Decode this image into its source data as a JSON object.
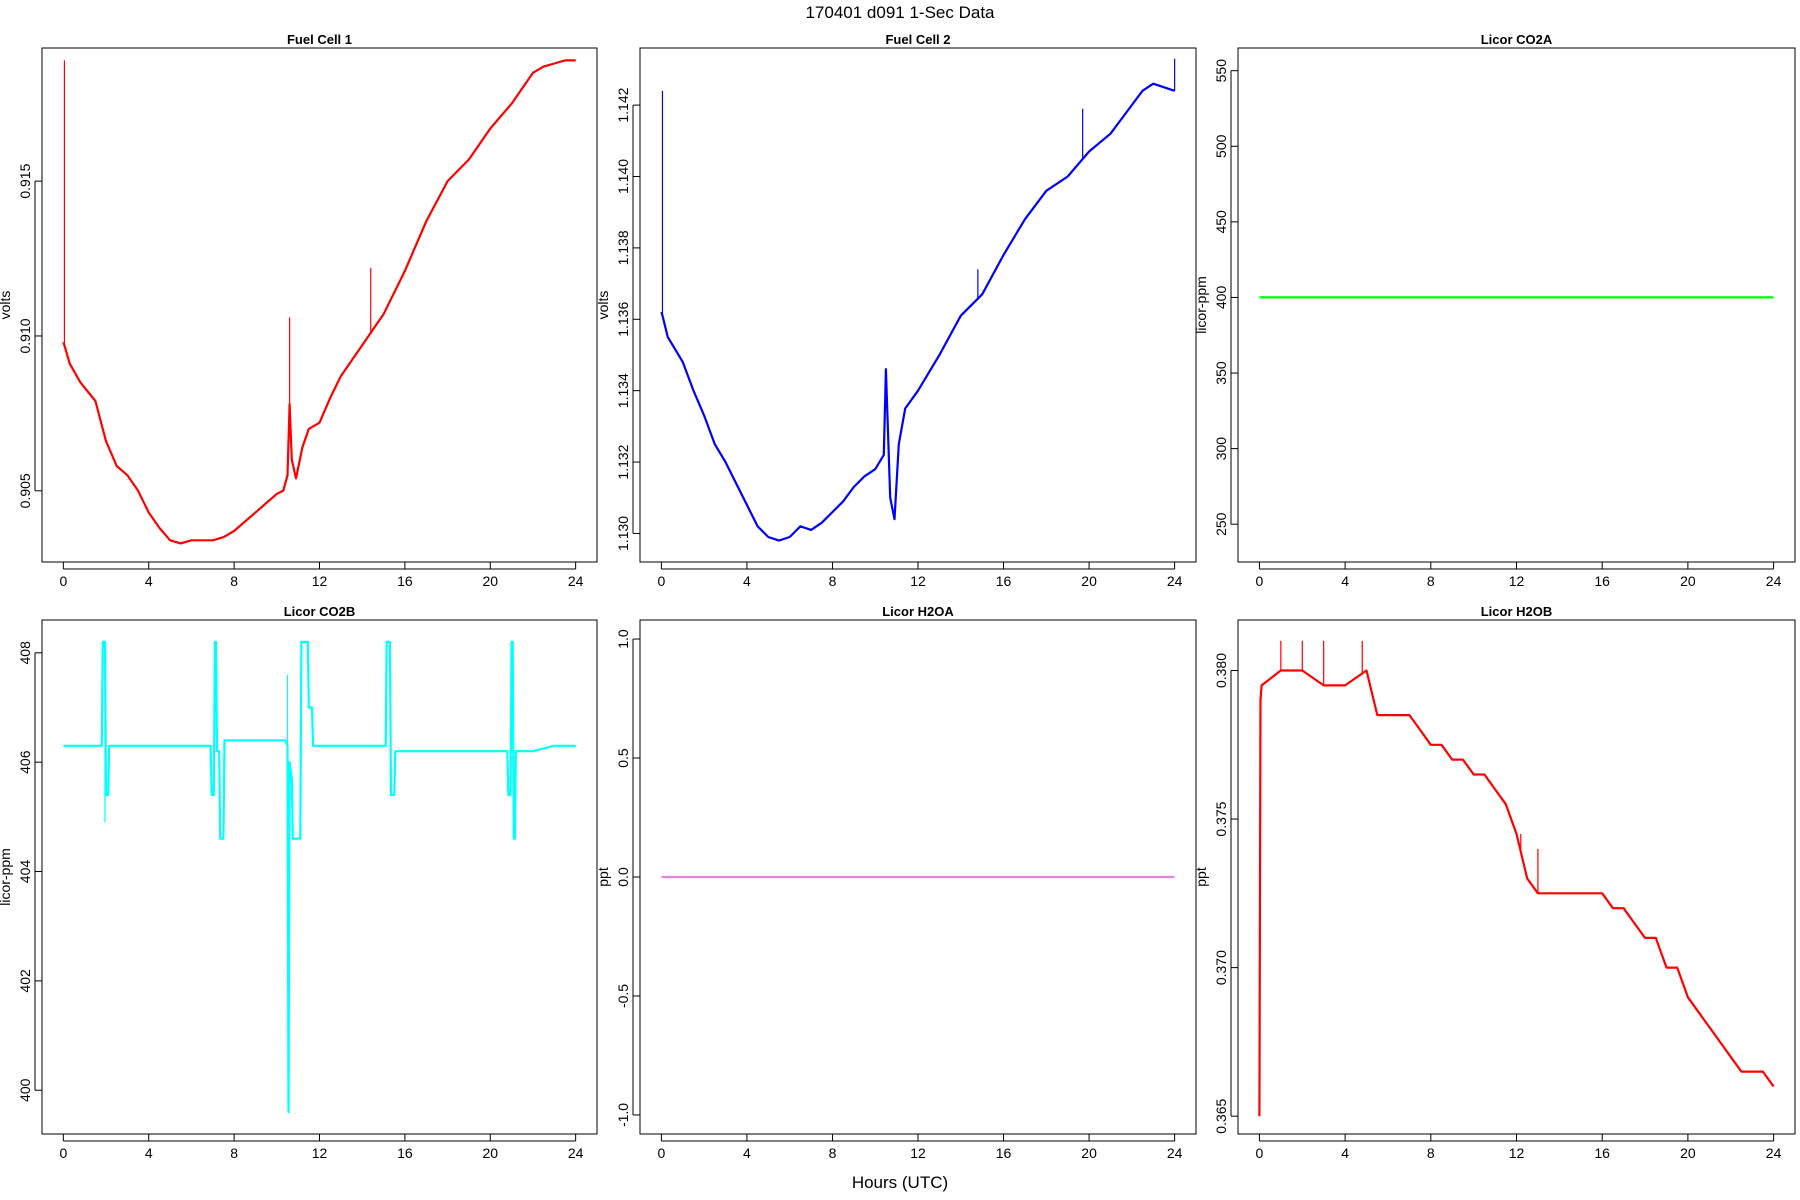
{
  "figure": {
    "title": "170401    d091    1-Sec Data",
    "xlabel": "Hours (UTC)"
  },
  "chart_data": [
    {
      "type": "line",
      "title": "Fuel Cell 1",
      "ylabel": "volts",
      "xlabel": "",
      "color": "#ff0000",
      "xlim": [
        -1,
        25
      ],
      "ylim": [
        0.9027,
        0.9193
      ],
      "xticks": [
        "0",
        "4",
        "8",
        "12",
        "16",
        "20",
        "24"
      ],
      "yticks": [
        "0.905",
        "0.910",
        "0.915"
      ],
      "series": [
        {
          "x": [
            0,
            0.05,
            0.3,
            0.8,
            1.5,
            2,
            2.5,
            3,
            3.5,
            4,
            4.5,
            5,
            5.5,
            6,
            6.5,
            7,
            7.5,
            8,
            8.5,
            9,
            9.5,
            10,
            10.3,
            10.5,
            10.6,
            10.7,
            10.9,
            11.2,
            11.5,
            12,
            12.5,
            13,
            14,
            15,
            16,
            17,
            18,
            19,
            20,
            21,
            21.5,
            22,
            22.5,
            23,
            23.5,
            24
          ],
          "y": [
            0.9098,
            0.9097,
            0.9091,
            0.9085,
            0.9079,
            0.9066,
            0.9058,
            0.9055,
            0.905,
            0.9043,
            0.9038,
            0.9034,
            0.9033,
            0.9034,
            0.9034,
            0.9034,
            0.9035,
            0.9037,
            0.904,
            0.9043,
            0.9046,
            0.9049,
            0.905,
            0.9055,
            0.9078,
            0.906,
            0.9054,
            0.9064,
            0.907,
            0.9072,
            0.908,
            0.9087,
            0.9097,
            0.9107,
            0.9121,
            0.9137,
            0.915,
            0.9157,
            0.9167,
            0.9175,
            0.918,
            0.9185,
            0.9187,
            0.9188,
            0.9189,
            0.9189
          ]
        }
      ],
      "spikes": [
        {
          "x": 0.05,
          "y": 0.9189
        },
        {
          "x": 14.4,
          "y": 0.9122
        },
        {
          "x": 10.6,
          "y": 0.9106
        }
      ]
    },
    {
      "type": "line",
      "title": "Fuel Cell 2",
      "ylabel": "volts",
      "xlabel": "",
      "color": "#0000ff",
      "xlim": [
        -1,
        25
      ],
      "ylim": [
        1.1292,
        1.1436
      ],
      "xticks": [
        "0",
        "4",
        "8",
        "12",
        "16",
        "20",
        "24"
      ],
      "yticks": [
        "1.130",
        "1.132",
        "1.134",
        "1.136",
        "1.138",
        "1.140",
        "1.142"
      ],
      "series": [
        {
          "x": [
            0,
            0.05,
            0.3,
            1,
            1.5,
            2,
            2.5,
            3,
            3.5,
            4,
            4.5,
            5,
            5.5,
            6,
            6.5,
            7,
            7.5,
            8,
            8.5,
            9,
            9.5,
            10,
            10.4,
            10.5,
            10.7,
            10.9,
            11.1,
            11.4,
            12,
            12.5,
            13,
            14,
            15,
            16,
            17,
            18,
            19,
            20,
            21,
            22,
            22.5,
            23,
            24
          ],
          "y": [
            1.1362,
            1.1361,
            1.1355,
            1.1348,
            1.134,
            1.1333,
            1.1325,
            1.132,
            1.1314,
            1.1308,
            1.1302,
            1.1299,
            1.1298,
            1.1299,
            1.1302,
            1.1301,
            1.1303,
            1.1306,
            1.1309,
            1.1313,
            1.1316,
            1.1318,
            1.1322,
            1.1346,
            1.131,
            1.1304,
            1.1325,
            1.1335,
            1.134,
            1.1345,
            1.135,
            1.1361,
            1.1367,
            1.1378,
            1.1388,
            1.1396,
            1.14,
            1.1407,
            1.1412,
            1.142,
            1.1424,
            1.1426,
            1.1424
          ]
        }
      ],
      "spikes": [
        {
          "x": 0.05,
          "y": 1.1424
        },
        {
          "x": 19.7,
          "y": 1.1419
        },
        {
          "x": 24,
          "y": 1.1433
        },
        {
          "x": 14.8,
          "y": 1.1374
        }
      ]
    },
    {
      "type": "line",
      "title": "Licor CO2A",
      "ylabel": "licor-ppm",
      "xlabel": "",
      "color": "#00ff00",
      "xlim": [
        -1,
        25
      ],
      "ylim": [
        225,
        565
      ],
      "xticks": [
        "0",
        "4",
        "8",
        "12",
        "16",
        "20",
        "24"
      ],
      "yticks": [
        "250",
        "300",
        "350",
        "400",
        "450",
        "500",
        "550"
      ],
      "series": [
        {
          "x": [
            0,
            24
          ],
          "y": [
            400,
            400
          ]
        }
      ],
      "spikes": []
    },
    {
      "type": "line",
      "title": "Licor CO2B",
      "ylabel": "licor-ppm",
      "xlabel": "",
      "color": "#00ffff",
      "xlim": [
        -1,
        25
      ],
      "ylim": [
        399.2,
        408.6
      ],
      "xticks": [
        "0",
        "4",
        "8",
        "12",
        "16",
        "20",
        "24"
      ],
      "yticks": [
        "400",
        "402",
        "404",
        "406",
        "408"
      ],
      "series": [
        {
          "x": [
            0,
            1.8,
            1.85,
            1.95,
            2.0,
            2.1,
            2.15,
            2.25,
            2.3,
            6.9,
            6.95,
            7.05,
            7.1,
            7.15,
            7.2,
            7.3,
            7.35,
            7.5,
            7.55,
            7.6,
            10,
            10.4,
            10.5,
            10.55,
            10.6,
            10.7,
            10.75,
            11.1,
            11.15,
            11.45,
            11.5,
            11.65,
            11.7,
            12,
            13,
            14,
            15.1,
            15.15,
            15.3,
            15.35,
            15.5,
            15.55,
            17,
            18,
            20.8,
            20.85,
            20.95,
            21.0,
            21.05,
            21.1,
            21.15,
            21.2,
            22,
            23,
            24
          ],
          "y": [
            406.3,
            406.3,
            408.2,
            408.2,
            405.4,
            405.4,
            406.3,
            406.3,
            406.3,
            406.3,
            405.4,
            405.4,
            408.2,
            408.2,
            406.2,
            406.2,
            404.6,
            404.6,
            406.4,
            406.4,
            406.4,
            406.4,
            406.3,
            399.6,
            406.0,
            405.7,
            404.6,
            404.6,
            408.2,
            408.2,
            407.0,
            407.0,
            406.3,
            406.3,
            406.3,
            406.3,
            406.3,
            408.2,
            408.2,
            405.4,
            405.4,
            406.2,
            406.2,
            406.2,
            406.2,
            405.4,
            405.4,
            408.2,
            408.2,
            404.6,
            404.6,
            406.2,
            406.2,
            406.3,
            406.3
          ]
        }
      ],
      "spikes": [
        {
          "x": 10.5,
          "y": 407.6
        },
        {
          "x": 1.95,
          "y": 404.9
        }
      ]
    },
    {
      "type": "line",
      "title": "Licor H2OA",
      "ylabel": "ppt",
      "xlabel": "",
      "color": "#dd88dd",
      "xlim": [
        -1,
        25
      ],
      "ylim": [
        -1.08,
        1.08
      ],
      "xticks": [
        "0",
        "4",
        "8",
        "12",
        "16",
        "20",
        "24"
      ],
      "yticks": [
        "-1.0",
        "-0.5",
        "0.0",
        "0.5",
        "1.0"
      ],
      "series": [
        {
          "x": [
            0,
            24
          ],
          "y": [
            0,
            0
          ]
        }
      ],
      "spikes": []
    },
    {
      "type": "line",
      "title": "Licor H2OB",
      "ylabel": "ppt",
      "xlabel": "",
      "color": "#ff0000",
      "xlim": [
        -1,
        25
      ],
      "ylim": [
        0.3644,
        0.3817
      ],
      "xticks": [
        "0",
        "4",
        "8",
        "12",
        "16",
        "20",
        "24"
      ],
      "yticks": [
        "0.365",
        "0.370",
        "0.375",
        "0.380"
      ],
      "series": [
        {
          "x": [
            0,
            0.05,
            0.1,
            1,
            2,
            3,
            4,
            5,
            5.5,
            6,
            7,
            7.5,
            8,
            8.5,
            9,
            9.5,
            10,
            10.5,
            11,
            11.5,
            12,
            12.5,
            13,
            14,
            15,
            16,
            16.5,
            17,
            17.5,
            18,
            18.5,
            19,
            19.5,
            20,
            20.5,
            21,
            21.5,
            22,
            22.5,
            23,
            23.5,
            24
          ],
          "y": [
            0.365,
            0.379,
            0.3795,
            0.38,
            0.38,
            0.3795,
            0.3795,
            0.38,
            0.3785,
            0.3785,
            0.3785,
            0.378,
            0.3775,
            0.3775,
            0.377,
            0.377,
            0.3765,
            0.3765,
            0.376,
            0.3755,
            0.3745,
            0.373,
            0.3725,
            0.3725,
            0.3725,
            0.3725,
            0.372,
            0.372,
            0.3715,
            0.371,
            0.371,
            0.37,
            0.37,
            0.369,
            0.3685,
            0.368,
            0.3675,
            0.367,
            0.3665,
            0.3665,
            0.3665,
            0.366
          ]
        }
      ],
      "spikes": [
        {
          "x": 1.0,
          "y": 0.381
        },
        {
          "x": 4.8,
          "y": 0.381
        },
        {
          "x": 3.0,
          "y": 0.381
        },
        {
          "x": 2.0,
          "y": 0.381
        },
        {
          "x": 12.2,
          "y": 0.3745
        },
        {
          "x": 13.0,
          "y": 0.374
        }
      ]
    }
  ]
}
